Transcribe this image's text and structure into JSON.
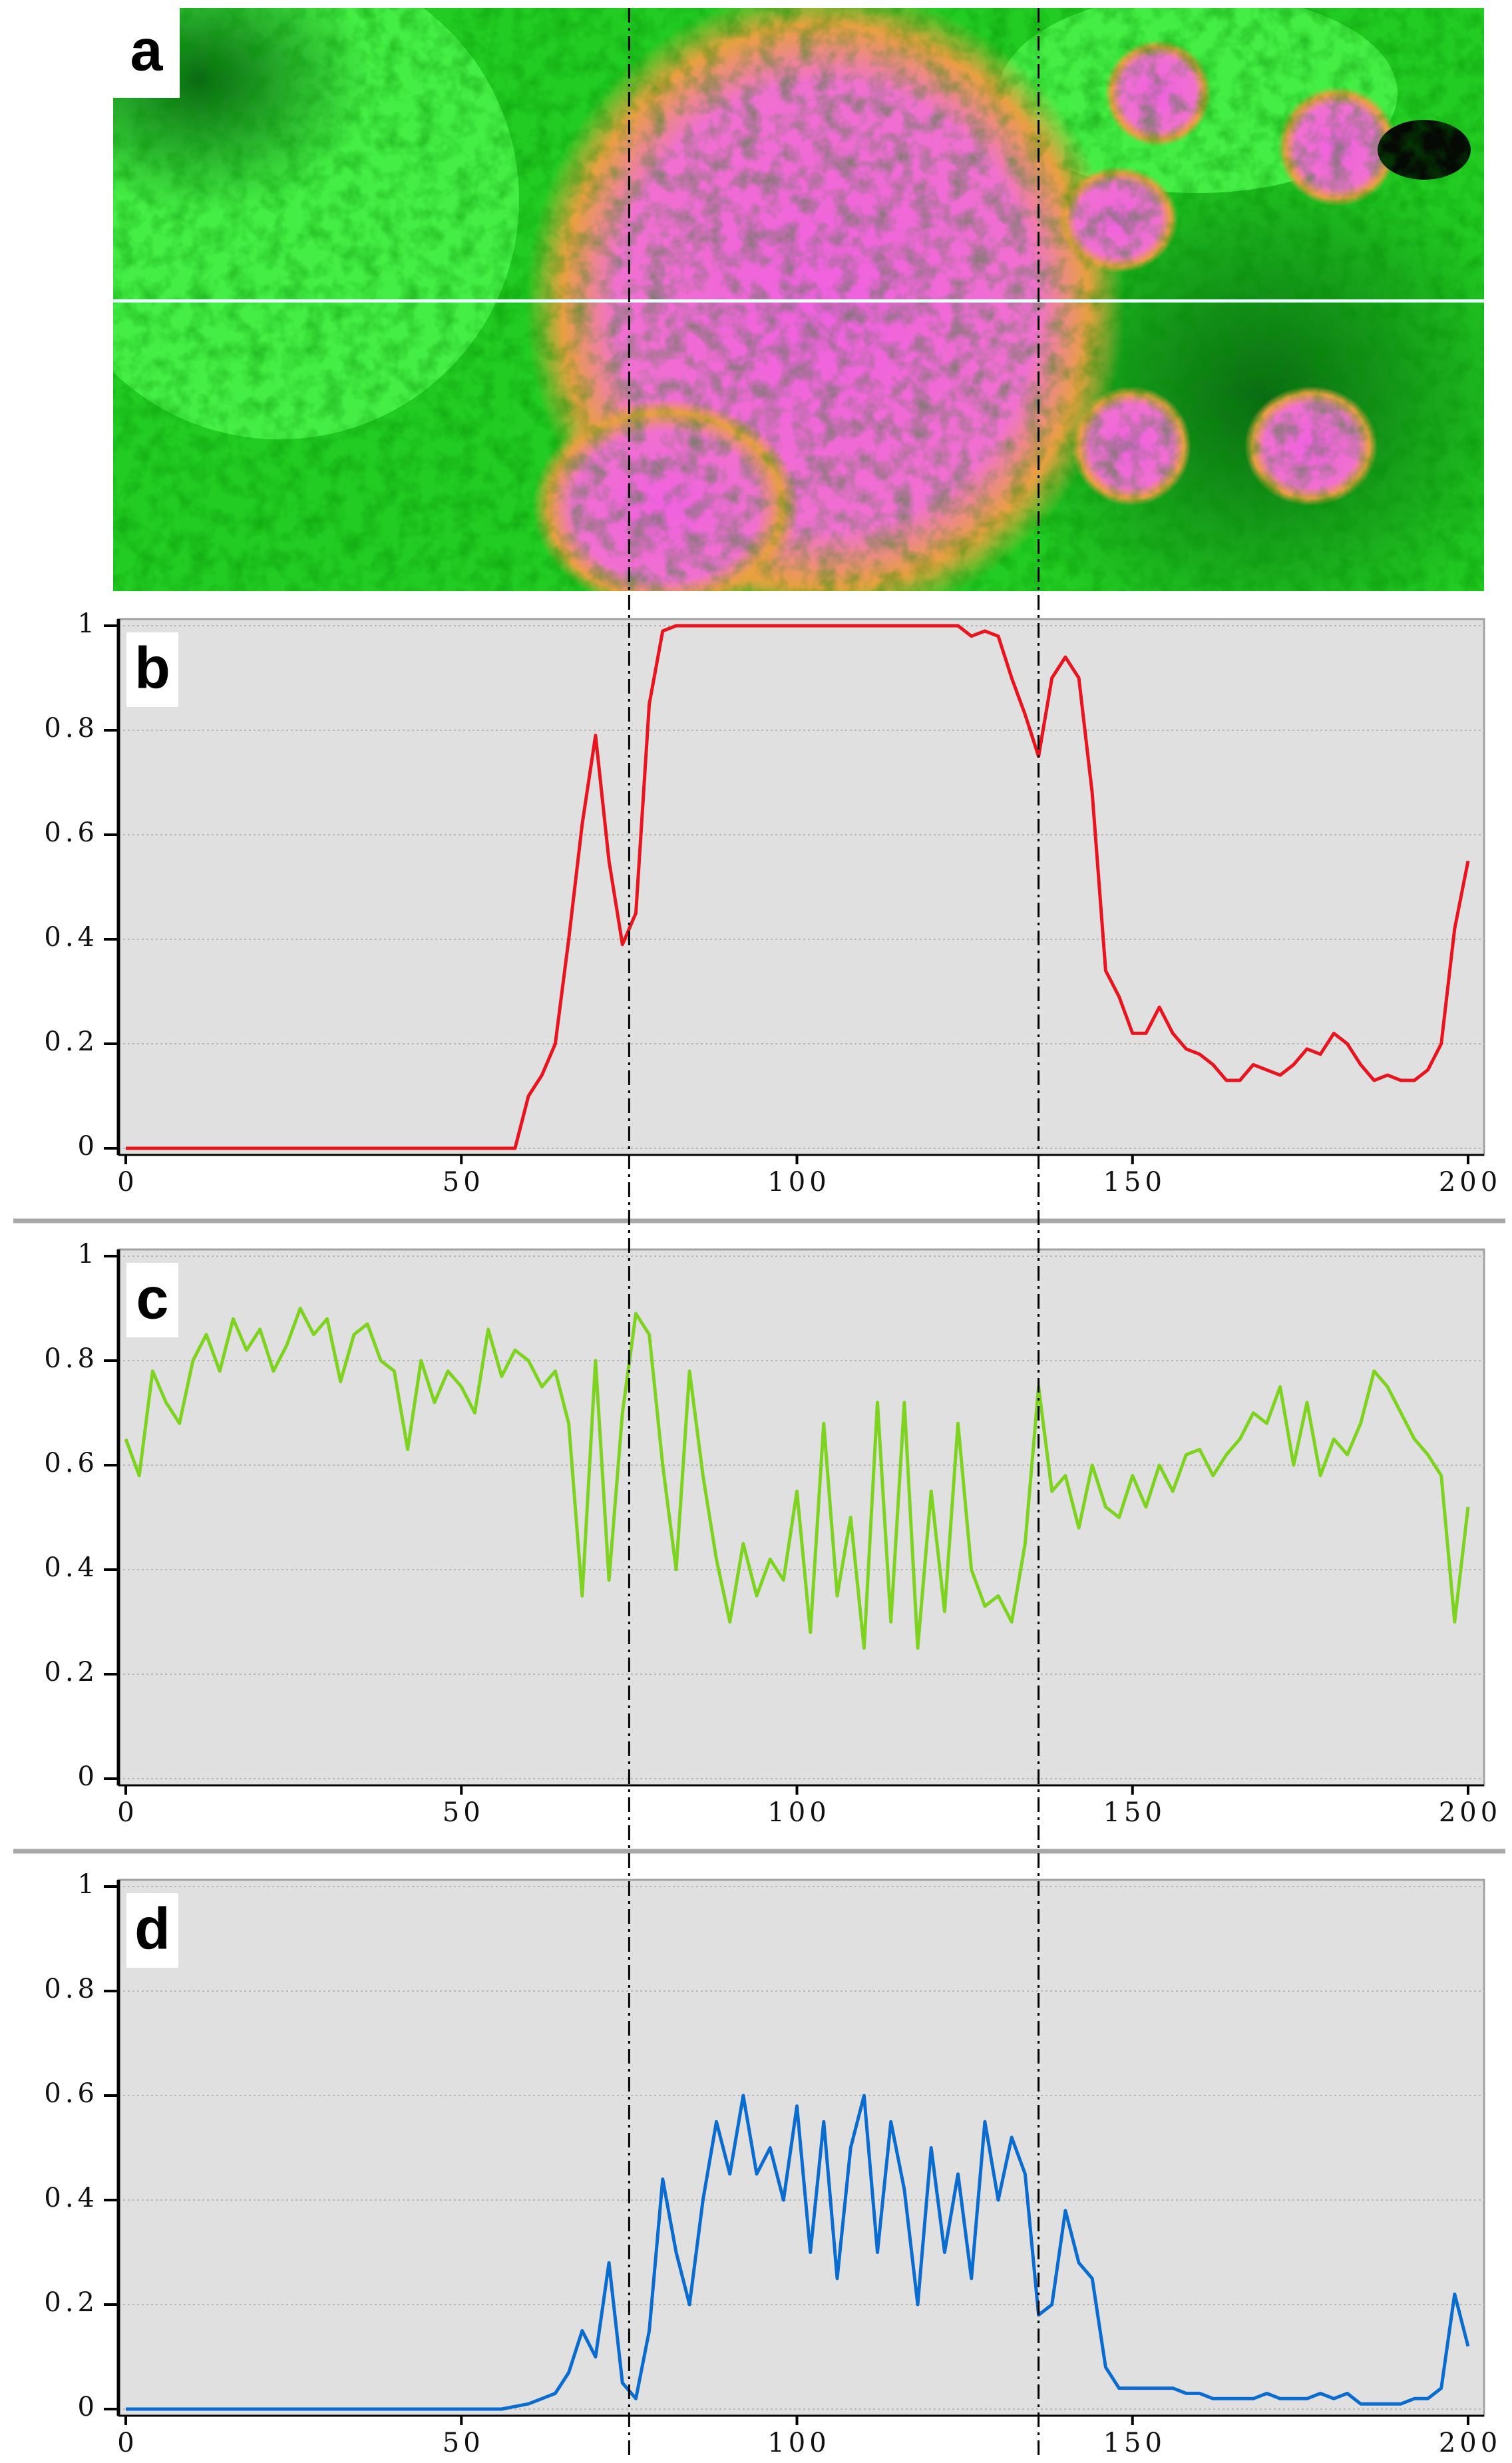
{
  "image_panel": {
    "label": "a"
  },
  "reference_lines_x": [
    75,
    136
  ],
  "chart_data": [
    {
      "type": "line",
      "panel_label": "b",
      "color": "#e8141e",
      "x": [
        0,
        2,
        4,
        6,
        8,
        10,
        12,
        14,
        16,
        18,
        20,
        22,
        24,
        26,
        28,
        30,
        32,
        34,
        36,
        38,
        40,
        42,
        44,
        46,
        48,
        50,
        52,
        54,
        56,
        58,
        60,
        62,
        64,
        66,
        68,
        70,
        72,
        74,
        76,
        78,
        80,
        82,
        84,
        86,
        88,
        90,
        92,
        94,
        96,
        98,
        100,
        102,
        104,
        106,
        108,
        110,
        112,
        114,
        116,
        118,
        120,
        122,
        124,
        126,
        128,
        130,
        132,
        134,
        136,
        138,
        140,
        142,
        144,
        146,
        148,
        150,
        152,
        154,
        156,
        158,
        160,
        162,
        164,
        166,
        168,
        170,
        172,
        174,
        176,
        178,
        180,
        182,
        184,
        186,
        188,
        190,
        192,
        194,
        196,
        198,
        200
      ],
      "values": [
        0,
        0,
        0,
        0,
        0,
        0,
        0,
        0,
        0,
        0,
        0,
        0,
        0,
        0,
        0,
        0,
        0,
        0,
        0,
        0,
        0,
        0,
        0,
        0,
        0,
        0,
        0,
        0,
        0,
        0,
        0.1,
        0.14,
        0.2,
        0.4,
        0.62,
        0.79,
        0.55,
        0.39,
        0.45,
        0.85,
        0.99,
        1,
        1,
        1,
        1,
        1,
        1,
        1,
        1,
        1,
        1,
        1,
        1,
        1,
        1,
        1,
        1,
        1,
        1,
        1,
        1,
        1,
        1,
        0.98,
        0.99,
        0.98,
        0.9,
        0.83,
        0.75,
        0.9,
        0.94,
        0.9,
        0.68,
        0.34,
        0.29,
        0.22,
        0.22,
        0.27,
        0.22,
        0.19,
        0.18,
        0.16,
        0.13,
        0.13,
        0.16,
        0.15,
        0.14,
        0.16,
        0.19,
        0.18,
        0.22,
        0.2,
        0.16,
        0.13,
        0.14,
        0.13,
        0.13,
        0.15,
        0.2,
        0.42,
        0.55
      ],
      "xlim": [
        0,
        200
      ],
      "ylim": [
        0,
        1
      ],
      "xticks": [
        0,
        50,
        100,
        150,
        200
      ],
      "yticks": [
        0,
        0.2,
        0.4,
        0.6,
        0.8,
        1
      ],
      "grid": true
    },
    {
      "type": "line",
      "panel_label": "c",
      "color": "#7ed321",
      "x": [
        0,
        2,
        4,
        6,
        8,
        10,
        12,
        14,
        16,
        18,
        20,
        22,
        24,
        26,
        28,
        30,
        32,
        34,
        36,
        38,
        40,
        42,
        44,
        46,
        48,
        50,
        52,
        54,
        56,
        58,
        60,
        62,
        64,
        66,
        68,
        70,
        72,
        74,
        76,
        78,
        80,
        82,
        84,
        86,
        88,
        90,
        92,
        94,
        96,
        98,
        100,
        102,
        104,
        106,
        108,
        110,
        112,
        114,
        116,
        118,
        120,
        122,
        124,
        126,
        128,
        130,
        132,
        134,
        136,
        138,
        140,
        142,
        144,
        146,
        148,
        150,
        152,
        154,
        156,
        158,
        160,
        162,
        164,
        166,
        168,
        170,
        172,
        174,
        176,
        178,
        180,
        182,
        184,
        186,
        188,
        190,
        192,
        194,
        196,
        198,
        200
      ],
      "values": [
        0.65,
        0.58,
        0.78,
        0.72,
        0.68,
        0.8,
        0.85,
        0.78,
        0.88,
        0.82,
        0.86,
        0.78,
        0.83,
        0.9,
        0.85,
        0.88,
        0.76,
        0.85,
        0.87,
        0.8,
        0.78,
        0.63,
        0.8,
        0.72,
        0.78,
        0.75,
        0.7,
        0.86,
        0.77,
        0.82,
        0.8,
        0.75,
        0.78,
        0.68,
        0.35,
        0.8,
        0.38,
        0.7,
        0.89,
        0.85,
        0.6,
        0.4,
        0.78,
        0.58,
        0.42,
        0.3,
        0.45,
        0.35,
        0.42,
        0.38,
        0.55,
        0.28,
        0.68,
        0.35,
        0.5,
        0.25,
        0.72,
        0.3,
        0.72,
        0.25,
        0.55,
        0.32,
        0.68,
        0.4,
        0.33,
        0.35,
        0.3,
        0.45,
        0.75,
        0.55,
        0.58,
        0.48,
        0.6,
        0.52,
        0.5,
        0.58,
        0.52,
        0.6,
        0.55,
        0.62,
        0.63,
        0.58,
        0.62,
        0.65,
        0.7,
        0.68,
        0.75,
        0.6,
        0.72,
        0.58,
        0.65,
        0.62,
        0.68,
        0.78,
        0.75,
        0.7,
        0.65,
        0.62,
        0.58,
        0.3,
        0.52
      ],
      "xlim": [
        0,
        200
      ],
      "ylim": [
        0,
        1
      ],
      "xticks": [
        0,
        50,
        100,
        150,
        200
      ],
      "yticks": [
        0,
        0.2,
        0.4,
        0.6,
        0.8,
        1
      ],
      "grid": true
    },
    {
      "type": "line",
      "panel_label": "d",
      "color": "#0a6ccf",
      "x": [
        0,
        2,
        4,
        6,
        8,
        10,
        12,
        14,
        16,
        18,
        20,
        22,
        24,
        26,
        28,
        30,
        32,
        34,
        36,
        38,
        40,
        42,
        44,
        46,
        48,
        50,
        52,
        54,
        56,
        58,
        60,
        62,
        64,
        66,
        68,
        70,
        72,
        74,
        76,
        78,
        80,
        82,
        84,
        86,
        88,
        90,
        92,
        94,
        96,
        98,
        100,
        102,
        104,
        106,
        108,
        110,
        112,
        114,
        116,
        118,
        120,
        122,
        124,
        126,
        128,
        130,
        132,
        134,
        136,
        138,
        140,
        142,
        144,
        146,
        148,
        150,
        152,
        154,
        156,
        158,
        160,
        162,
        164,
        166,
        168,
        170,
        172,
        174,
        176,
        178,
        180,
        182,
        184,
        186,
        188,
        190,
        192,
        194,
        196,
        198,
        200
      ],
      "values": [
        0,
        0,
        0,
        0,
        0,
        0,
        0,
        0,
        0,
        0,
        0,
        0,
        0,
        0,
        0,
        0,
        0,
        0,
        0,
        0,
        0,
        0,
        0,
        0,
        0,
        0,
        0,
        0,
        0,
        0.005,
        0.01,
        0.02,
        0.03,
        0.07,
        0.15,
        0.1,
        0.28,
        0.05,
        0.02,
        0.15,
        0.44,
        0.3,
        0.2,
        0.4,
        0.55,
        0.45,
        0.6,
        0.45,
        0.5,
        0.4,
        0.58,
        0.3,
        0.55,
        0.25,
        0.5,
        0.6,
        0.3,
        0.55,
        0.42,
        0.2,
        0.5,
        0.3,
        0.45,
        0.25,
        0.55,
        0.4,
        0.52,
        0.45,
        0.18,
        0.2,
        0.38,
        0.28,
        0.25,
        0.08,
        0.04,
        0.04,
        0.04,
        0.04,
        0.04,
        0.03,
        0.03,
        0.02,
        0.02,
        0.02,
        0.02,
        0.03,
        0.02,
        0.02,
        0.02,
        0.03,
        0.02,
        0.03,
        0.01,
        0.01,
        0.01,
        0.01,
        0.02,
        0.02,
        0.04,
        0.22,
        0.12
      ],
      "xlim": [
        0,
        200
      ],
      "ylim": [
        0,
        1
      ],
      "xticks": [
        0,
        50,
        100,
        150,
        200
      ],
      "yticks": [
        0,
        0.2,
        0.4,
        0.6,
        0.8,
        1
      ],
      "grid": true
    }
  ]
}
